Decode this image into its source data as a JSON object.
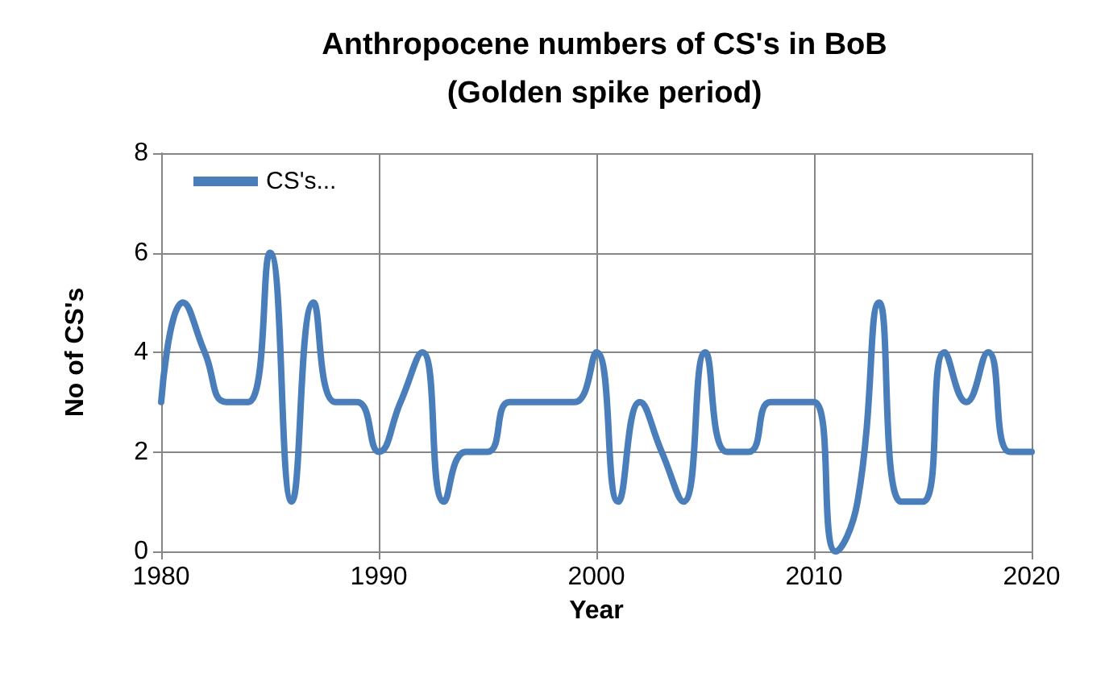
{
  "chart_data": {
    "type": "line",
    "title": "Anthropocene numbers of CS's in BoB\n(Golden spike period)",
    "xlabel": "Year",
    "ylabel": "No of CS's",
    "x": [
      1980,
      1981,
      1982,
      1983,
      1984,
      1985,
      1986,
      1987,
      1988,
      1989,
      1990,
      1991,
      1992,
      1993,
      1994,
      1995,
      1996,
      1997,
      1998,
      1999,
      2000,
      2001,
      2002,
      2003,
      2004,
      2005,
      2006,
      2007,
      2008,
      2009,
      2010,
      2011,
      2012,
      2013,
      2014,
      2015,
      2016,
      2017,
      2018,
      2019,
      2020
    ],
    "series": [
      {
        "name": "CS's...",
        "color": "#4a7ebb",
        "values": [
          3,
          5,
          4,
          3,
          3,
          6,
          1,
          5,
          3,
          3,
          2,
          3,
          4,
          1,
          2,
          2,
          3,
          3,
          3,
          3,
          4,
          1,
          3,
          2,
          1,
          4,
          2,
          2,
          3,
          3,
          3,
          0,
          1,
          5,
          1,
          1,
          4,
          3,
          4,
          2,
          2
        ]
      }
    ],
    "xlim": [
      1980,
      2020
    ],
    "xticks": [
      1980,
      1990,
      2000,
      2010,
      2020
    ],
    "ylim": [
      0,
      8
    ],
    "yticks": [
      0,
      2,
      4,
      6,
      8
    ],
    "grid": true,
    "legend": "top left",
    "marker": "none",
    "line_style": "solid"
  }
}
